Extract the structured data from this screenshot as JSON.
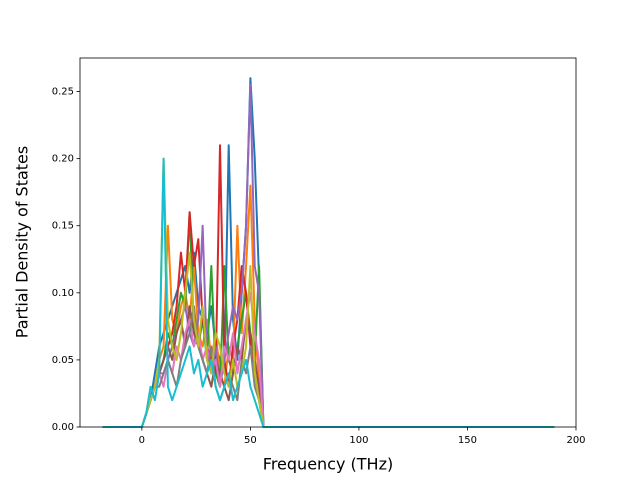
{
  "chart_data": {
    "type": "line",
    "xlabel": "Frequency (THz)",
    "ylabel": "Partial Density of States",
    "x": [
      -18,
      0,
      2,
      4,
      6,
      8,
      10,
      12,
      14,
      16,
      18,
      20,
      22,
      24,
      26,
      28,
      30,
      32,
      34,
      36,
      38,
      40,
      42,
      44,
      46,
      48,
      50,
      52,
      54,
      56,
      60,
      190
    ],
    "series": [
      {
        "color": "#1f77b4",
        "values": [
          0,
          0,
          0.01,
          0.02,
          0.04,
          0.06,
          0.07,
          0.08,
          0.09,
          0.1,
          0.11,
          0.12,
          0.1,
          0.13,
          0.09,
          0.08,
          0.07,
          0.09,
          0.06,
          0.05,
          0.04,
          0.21,
          0.08,
          0.05,
          0.1,
          0.15,
          0.26,
          0.2,
          0.11,
          0,
          0,
          0
        ]
      },
      {
        "color": "#ff7f0e",
        "values": [
          0,
          0,
          0.01,
          0.02,
          0.03,
          0.05,
          0.06,
          0.15,
          0.08,
          0.07,
          0.09,
          0.1,
          0.08,
          0.12,
          0.07,
          0.06,
          0.08,
          0.05,
          0.07,
          0.04,
          0.03,
          0.06,
          0.05,
          0.15,
          0.07,
          0.12,
          0.18,
          0.08,
          0.03,
          0,
          0,
          0
        ]
      },
      {
        "color": "#2ca02c",
        "values": [
          0,
          0,
          0.01,
          0.02,
          0.03,
          0.04,
          0.05,
          0.07,
          0.06,
          0.08,
          0.1,
          0.09,
          0.16,
          0.07,
          0.06,
          0.08,
          0.05,
          0.12,
          0.04,
          0.03,
          0.12,
          0.05,
          0.04,
          0.06,
          0.08,
          0.1,
          0.07,
          0.05,
          0.12,
          0,
          0,
          0
        ]
      },
      {
        "color": "#d62728",
        "values": [
          0,
          0,
          0.01,
          0.02,
          0.03,
          0.04,
          0.05,
          0.06,
          0.07,
          0.09,
          0.13,
          0.1,
          0.16,
          0.12,
          0.14,
          0.08,
          0.06,
          0.05,
          0.04,
          0.21,
          0.05,
          0.03,
          0.06,
          0.08,
          0.12,
          0.1,
          0.06,
          0.04,
          0.02,
          0,
          0,
          0
        ]
      },
      {
        "color": "#9467bd",
        "values": [
          0,
          0,
          0.01,
          0.02,
          0.03,
          0.04,
          0.04,
          0.05,
          0.06,
          0.07,
          0.08,
          0.09,
          0.07,
          0.06,
          0.08,
          0.15,
          0.05,
          0.04,
          0.06,
          0.03,
          0.05,
          0.07,
          0.09,
          0.08,
          0.1,
          0.15,
          0.255,
          0.12,
          0.1,
          0,
          0,
          0
        ]
      },
      {
        "color": "#8c564b",
        "values": [
          0,
          0,
          0.01,
          0.02,
          0.03,
          0.04,
          0.05,
          0.06,
          0.05,
          0.07,
          0.08,
          0.06,
          0.09,
          0.07,
          0.06,
          0.05,
          0.04,
          0.03,
          0.05,
          0.04,
          0.03,
          0.02,
          0.04,
          0.06,
          0.05,
          0.08,
          0.07,
          0.05,
          0.03,
          0,
          0,
          0
        ]
      },
      {
        "color": "#e377c2",
        "values": [
          0,
          0,
          0.01,
          0.02,
          0.03,
          0.04,
          0.03,
          0.05,
          0.04,
          0.06,
          0.05,
          0.07,
          0.08,
          0.06,
          0.07,
          0.05,
          0.06,
          0.04,
          0.05,
          0.03,
          0.06,
          0.05,
          0.07,
          0.04,
          0.06,
          0.08,
          0.1,
          0.07,
          0.05,
          0,
          0,
          0
        ]
      },
      {
        "color": "#7f7f7f",
        "values": [
          0,
          0,
          0.01,
          0.02,
          0.03,
          0.03,
          0.04,
          0.05,
          0.04,
          0.03,
          0.05,
          0.06,
          0.07,
          0.09,
          0.06,
          0.05,
          0.04,
          0.06,
          0.03,
          0.02,
          0.03,
          0.04,
          0.03,
          0.02,
          0.05,
          0.04,
          0.06,
          0.03,
          0.02,
          0,
          0,
          0
        ]
      },
      {
        "color": "#bcbd22",
        "values": [
          0,
          0,
          0.01,
          0.02,
          0.03,
          0.05,
          0.2,
          0.08,
          0.06,
          0.05,
          0.07,
          0.1,
          0.13,
          0.08,
          0.06,
          0.09,
          0.05,
          0.04,
          0.07,
          0.06,
          0.04,
          0.03,
          0.05,
          0.03,
          0.04,
          0.06,
          0.12,
          0.04,
          0.02,
          0,
          0,
          0
        ]
      },
      {
        "color": "#17becf",
        "values": [
          0,
          0,
          0.01,
          0.03,
          0.02,
          0.04,
          0.2,
          0.03,
          0.02,
          0.03,
          0.04,
          0.05,
          0.06,
          0.04,
          0.05,
          0.03,
          0.04,
          0.05,
          0.03,
          0.02,
          0.03,
          0.04,
          0.02,
          0.03,
          0.04,
          0.05,
          0.03,
          0.02,
          0.01,
          0,
          0,
          0
        ]
      }
    ],
    "xlim": [
      -28.5,
      200
    ],
    "ylim": [
      0,
      0.275
    ],
    "xticks": [
      0,
      50,
      100,
      150,
      200
    ],
    "yticks": [
      {
        "value": 0,
        "label": "0.00"
      },
      {
        "value": 0.05,
        "label": "0.05"
      },
      {
        "value": 0.1,
        "label": "0.10"
      },
      {
        "value": 0.15,
        "label": "0.15"
      },
      {
        "value": 0.2,
        "label": "0.20"
      },
      {
        "value": 0.25,
        "label": "0.25"
      }
    ]
  }
}
